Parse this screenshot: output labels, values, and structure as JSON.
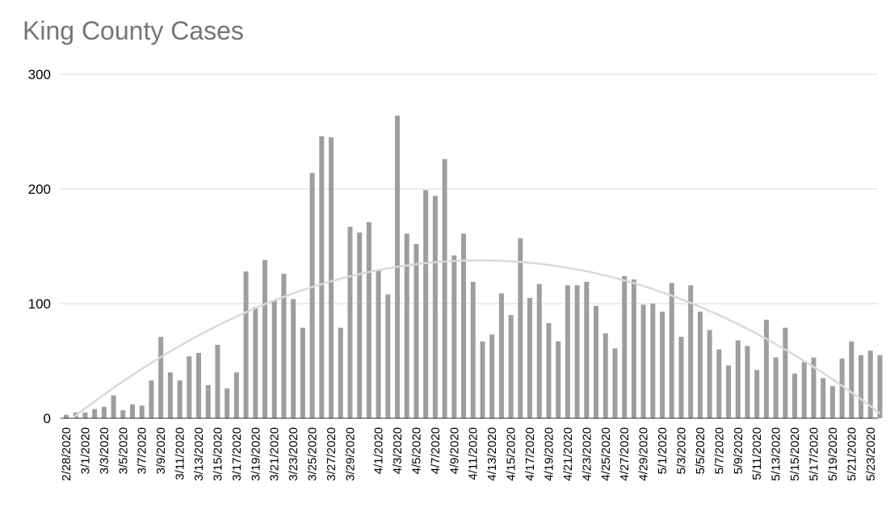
{
  "chart_data": {
    "type": "bar",
    "title": "King County Cases",
    "xlabel": "",
    "ylabel": "",
    "ylim": [
      0,
      300
    ],
    "yticks": [
      0,
      100,
      200,
      300
    ],
    "grid": true,
    "legend": "none",
    "trendline": {
      "type": "polynomial",
      "color": "#d9d9d9"
    },
    "colors": {
      "bar": "#9e9e9e",
      "grid": "#d9d9d9",
      "title": "#757575",
      "text": "#000000"
    },
    "categories": [
      "2/28/2020",
      "2/29/2020",
      "3/1/2020",
      "3/2/2020",
      "3/3/2020",
      "3/4/2020",
      "3/5/2020",
      "3/6/2020",
      "3/7/2020",
      "3/8/2020",
      "3/9/2020",
      "3/10/2020",
      "3/11/2020",
      "3/12/2020",
      "3/13/2020",
      "3/14/2020",
      "3/15/2020",
      "3/16/2020",
      "3/17/2020",
      "3/18/2020",
      "3/19/2020",
      "3/20/2020",
      "3/21/2020",
      "3/22/2020",
      "3/23/2020",
      "3/24/2020",
      "3/25/2020",
      "3/26/2020",
      "3/27/2020",
      "3/28/2020",
      "3/29/2020",
      "3/30/2020",
      "3/31/2020",
      "4/1/2020",
      "4/2/2020",
      "4/3/2020",
      "4/4/2020",
      "4/5/2020",
      "4/6/2020",
      "4/7/2020",
      "4/8/2020",
      "4/9/2020",
      "4/10/2020",
      "4/11/2020",
      "4/12/2020",
      "4/13/2020",
      "4/14/2020",
      "4/15/2020",
      "4/16/2020",
      "4/17/2020",
      "4/18/2020",
      "4/19/2020",
      "4/20/2020",
      "4/21/2020",
      "4/22/2020",
      "4/23/2020",
      "4/24/2020",
      "4/25/2020",
      "4/26/2020",
      "4/27/2020",
      "4/28/2020",
      "4/29/2020",
      "4/30/2020",
      "5/1/2020",
      "5/2/2020",
      "5/3/2020",
      "5/4/2020",
      "5/5/2020",
      "5/6/2020",
      "5/7/2020",
      "5/8/2020",
      "5/9/2020",
      "5/10/2020",
      "5/11/2020",
      "5/12/2020",
      "5/13/2020",
      "5/14/2020",
      "5/15/2020",
      "5/16/2020",
      "5/17/2020",
      "5/18/2020",
      "5/19/2020",
      "5/20/2020",
      "5/21/2020",
      "5/22/2020",
      "5/23/2020",
      "5/24/2020"
    ],
    "x_tick_labels": [
      "2/28/2020",
      "3/1/2020",
      "3/3/2020",
      "3/5/2020",
      "3/7/2020",
      "3/9/2020",
      "3/11/2020",
      "3/13/2020",
      "3/15/2020",
      "3/17/2020",
      "3/19/2020",
      "3/21/2020",
      "3/23/2020",
      "3/25/2020",
      "3/27/2020",
      "3/29/2020",
      "4/1/2020",
      "4/3/2020",
      "4/5/2020",
      "4/7/2020",
      "4/9/2020",
      "4/11/2020",
      "4/13/2020",
      "4/15/2020",
      "4/17/2020",
      "4/19/2020",
      "4/21/2020",
      "4/23/2020",
      "4/25/2020",
      "4/27/2020",
      "4/29/2020",
      "5/1/2020",
      "5/3/2020",
      "5/5/2020",
      "5/7/2020",
      "5/9/2020",
      "5/11/2020",
      "5/13/2020",
      "5/15/2020",
      "5/17/2020",
      "5/19/2020",
      "5/21/2020",
      "5/23/2020"
    ],
    "values": [
      3,
      5,
      5,
      8,
      10,
      20,
      7,
      12,
      11,
      33,
      71,
      40,
      33,
      54,
      57,
      29,
      64,
      26,
      40,
      128,
      97,
      138,
      103,
      126,
      104,
      79,
      214,
      246,
      245,
      79,
      167,
      162,
      171,
      129,
      108,
      264,
      161,
      152,
      199,
      194,
      226,
      142,
      161,
      119,
      67,
      73,
      109,
      90,
      157,
      105,
      117,
      83,
      67,
      116,
      116,
      119,
      98,
      74,
      61,
      124,
      121,
      99,
      100,
      93,
      118,
      71,
      116,
      93,
      77,
      60,
      46,
      68,
      63,
      42,
      86,
      53,
      79,
      39,
      49,
      53,
      35,
      28,
      52,
      67,
      55,
      59,
      55
    ]
  }
}
